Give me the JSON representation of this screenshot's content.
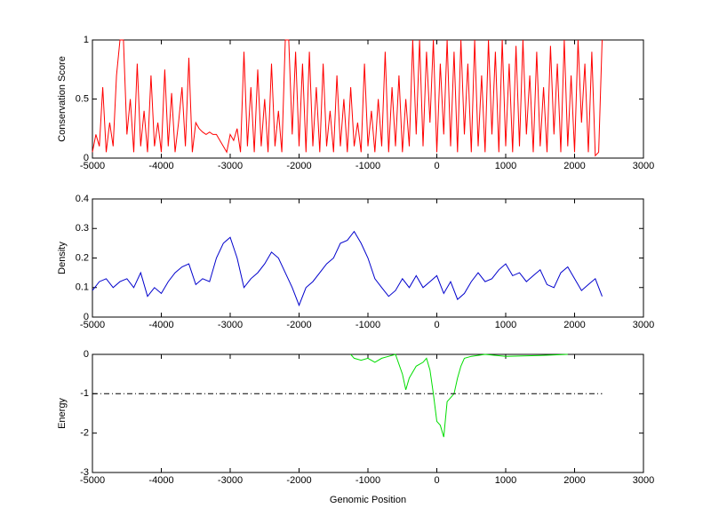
{
  "chart_data": [
    {
      "type": "line",
      "ylabel": "Conservation Score",
      "xlim": [
        -5000,
        3000
      ],
      "xticks": [
        -5000,
        -4000,
        -3000,
        -2000,
        -1000,
        0,
        1000,
        2000,
        3000
      ],
      "ylim": [
        0,
        1
      ],
      "yticks": [
        0,
        0.5,
        1
      ],
      "series": [
        {
          "color": "#ff0000",
          "x": [
            -5000,
            -4950,
            -4900,
            -4850,
            -4800,
            -4750,
            -4700,
            -4650,
            -4600,
            -4550,
            -4500,
            -4450,
            -4400,
            -4350,
            -4300,
            -4250,
            -4200,
            -4150,
            -4100,
            -4050,
            -4000,
            -3950,
            -3900,
            -3850,
            -3800,
            -3750,
            -3700,
            -3650,
            -3600,
            -3550,
            -3500,
            -3450,
            -3400,
            -3350,
            -3300,
            -3250,
            -3200,
            -3150,
            -3100,
            -3050,
            -3000,
            -2950,
            -2900,
            -2850,
            -2800,
            -2750,
            -2700,
            -2650,
            -2600,
            -2550,
            -2500,
            -2450,
            -2400,
            -2350,
            -2300,
            -2250,
            -2200,
            -2150,
            -2100,
            -2050,
            -2000,
            -1950,
            -1900,
            -1850,
            -1800,
            -1750,
            -1700,
            -1650,
            -1600,
            -1550,
            -1500,
            -1450,
            -1400,
            -1350,
            -1300,
            -1250,
            -1200,
            -1150,
            -1100,
            -1050,
            -1000,
            -950,
            -900,
            -850,
            -800,
            -750,
            -700,
            -650,
            -600,
            -550,
            -500,
            -450,
            -400,
            -350,
            -300,
            -250,
            -200,
            -150,
            -100,
            -50,
            0,
            50,
            100,
            150,
            200,
            250,
            300,
            350,
            400,
            450,
            500,
            550,
            600,
            650,
            700,
            750,
            800,
            850,
            900,
            950,
            1000,
            1050,
            1100,
            1150,
            1200,
            1250,
            1300,
            1350,
            1400,
            1450,
            1500,
            1550,
            1600,
            1650,
            1700,
            1750,
            1800,
            1850,
            1900,
            1950,
            2000,
            2050,
            2100,
            2150,
            2200,
            2250,
            2300,
            2350,
            2400
          ],
          "values": [
            0.05,
            0.2,
            0.1,
            0.6,
            0.05,
            0.3,
            0.1,
            0.7,
            1,
            1,
            0.2,
            0.5,
            0.05,
            0.8,
            0.1,
            0.4,
            0.05,
            0.7,
            0.1,
            0.3,
            0.05,
            0.75,
            0.1,
            0.55,
            0.05,
            0.3,
            0.6,
            0.1,
            0.85,
            0.05,
            0.3,
            0.25,
            0.22,
            0.2,
            0.22,
            0.2,
            0.2,
            0.15,
            0.1,
            0.05,
            0.2,
            0.15,
            0.25,
            0.05,
            0.9,
            0.1,
            0.6,
            0.05,
            0.75,
            0.1,
            0.5,
            0.05,
            0.8,
            0.1,
            0.4,
            0.05,
            1,
            1,
            0.2,
            0.9,
            0.1,
            0.8,
            0.05,
            0.9,
            0.1,
            0.6,
            0.05,
            0.8,
            0.1,
            0.4,
            0.05,
            0.7,
            0.1,
            0.5,
            0.05,
            0.6,
            0.1,
            0.3,
            0.05,
            0.8,
            0.1,
            0.4,
            0.05,
            0.5,
            0.1,
            0.9,
            0.05,
            0.6,
            0.1,
            0.7,
            0.05,
            0.5,
            0.1,
            1,
            0.2,
            1,
            0.1,
            0.9,
            0.3,
            1,
            0.05,
            0.8,
            0.2,
            1,
            0.1,
            0.9,
            0.05,
            1,
            0.2,
            0.8,
            0.05,
            1,
            0.1,
            0.7,
            0.05,
            1,
            0.2,
            0.9,
            0.05,
            1,
            0.1,
            0.8,
            0.05,
            0.95,
            0.1,
            1,
            0.2,
            0.7,
            0.05,
            0.9,
            0.1,
            0.6,
            0.05,
            0.95,
            0.2,
            0.8,
            0.05,
            1,
            0.1,
            0.7,
            0.05,
            1,
            0.3,
            0.8,
            0.05,
            0.9,
            0.02,
            0.05,
            1
          ]
        }
      ]
    },
    {
      "type": "line",
      "ylabel": "Density",
      "xlim": [
        -5000,
        3000
      ],
      "xticks": [
        -5000,
        -4000,
        -3000,
        -2000,
        -1000,
        0,
        1000,
        2000,
        3000
      ],
      "ylim": [
        0,
        0.4
      ],
      "yticks": [
        0,
        0.1,
        0.2,
        0.3,
        0.4
      ],
      "series": [
        {
          "color": "#0000cc",
          "x": [
            -5000,
            -4900,
            -4800,
            -4700,
            -4600,
            -4500,
            -4400,
            -4300,
            -4200,
            -4100,
            -4000,
            -3900,
            -3800,
            -3700,
            -3600,
            -3500,
            -3400,
            -3300,
            -3200,
            -3100,
            -3000,
            -2900,
            -2800,
            -2700,
            -2600,
            -2500,
            -2400,
            -2300,
            -2200,
            -2100,
            -2000,
            -1900,
            -1800,
            -1700,
            -1600,
            -1500,
            -1400,
            -1300,
            -1200,
            -1100,
            -1000,
            -900,
            -800,
            -700,
            -600,
            -500,
            -400,
            -300,
            -200,
            -100,
            0,
            100,
            200,
            300,
            400,
            500,
            600,
            700,
            800,
            900,
            1000,
            1100,
            1200,
            1300,
            1400,
            1500,
            1600,
            1700,
            1800,
            1900,
            2000,
            2100,
            2200,
            2300,
            2400
          ],
          "values": [
            0.09,
            0.12,
            0.13,
            0.1,
            0.12,
            0.13,
            0.1,
            0.15,
            0.07,
            0.1,
            0.08,
            0.12,
            0.15,
            0.17,
            0.18,
            0.11,
            0.13,
            0.12,
            0.2,
            0.25,
            0.27,
            0.2,
            0.1,
            0.13,
            0.15,
            0.18,
            0.22,
            0.2,
            0.15,
            0.1,
            0.04,
            0.1,
            0.12,
            0.15,
            0.18,
            0.2,
            0.25,
            0.26,
            0.29,
            0.25,
            0.2,
            0.13,
            0.1,
            0.07,
            0.09,
            0.13,
            0.1,
            0.14,
            0.1,
            0.12,
            0.14,
            0.08,
            0.12,
            0.06,
            0.08,
            0.12,
            0.15,
            0.12,
            0.13,
            0.16,
            0.18,
            0.14,
            0.15,
            0.12,
            0.14,
            0.16,
            0.11,
            0.1,
            0.15,
            0.17,
            0.13,
            0.09,
            0.11,
            0.13,
            0.07
          ]
        }
      ]
    },
    {
      "type": "line",
      "ylabel": "Energy",
      "xlabel": "Genomic Position",
      "xlim": [
        -5000,
        3000
      ],
      "xticks": [
        -5000,
        -4000,
        -3000,
        -2000,
        -1000,
        0,
        1000,
        2000,
        3000
      ],
      "ylim": [
        -3,
        0
      ],
      "yticks": [
        -3,
        -2,
        -1,
        0
      ],
      "series": [
        {
          "color": "#00dd00",
          "x": [
            -1250,
            -1200,
            -1100,
            -1000,
            -900,
            -800,
            -700,
            -600,
            -500,
            -450,
            -400,
            -300,
            -200,
            -150,
            -100,
            -50,
            0,
            50,
            100,
            150,
            200,
            250,
            300,
            350,
            400,
            500,
            700,
            1000,
            1500,
            1900
          ],
          "values": [
            0,
            -0.1,
            -0.15,
            -0.1,
            -0.2,
            -0.1,
            -0.05,
            0,
            -0.5,
            -0.9,
            -0.6,
            -0.3,
            -0.2,
            -0.1,
            -0.4,
            -1,
            -1.7,
            -1.8,
            -2.1,
            -1.2,
            -1.1,
            -1,
            -0.6,
            -0.3,
            -0.1,
            -0.05,
            0,
            -0.05,
            -0.03,
            0
          ]
        },
        {
          "color": "#000000",
          "dash": "dash-dot",
          "x": [
            -5000,
            2400
          ],
          "values": [
            -1,
            -1
          ]
        }
      ]
    }
  ]
}
